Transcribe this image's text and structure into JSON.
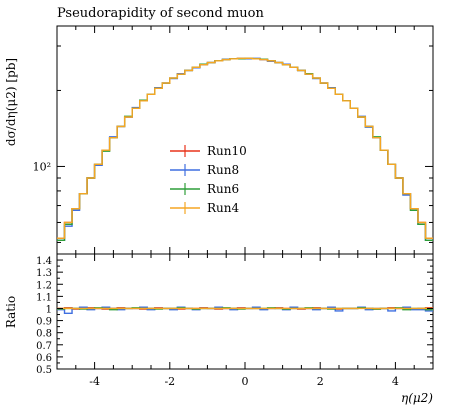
{
  "chart_data": {
    "type": "line",
    "title": "Pseudorapidity of second muon",
    "xlabel": "η(μ2)",
    "ylabel": "dσ/dη(μ2) [pb]",
    "yscale": "log",
    "xlim": [
      -5,
      5
    ],
    "ylim": [
      45,
      360
    ],
    "x_ticks": [
      -4,
      -2,
      0,
      2,
      4
    ],
    "x_tick_labels": [
      "-4",
      "-2",
      "0",
      "2",
      "4"
    ],
    "y_tick_label": "10²",
    "legend_position": "center",
    "bin_edges": [
      -5.0,
      -4.8,
      -4.6,
      -4.4,
      -4.2,
      -4.0,
      -3.8,
      -3.6,
      -3.4,
      -3.2,
      -3.0,
      -2.8,
      -2.6,
      -2.4,
      -2.2,
      -2.0,
      -1.8,
      -1.6,
      -1.4,
      -1.2,
      -1.0,
      -0.8,
      -0.6,
      -0.4,
      -0.2,
      0.0,
      0.2,
      0.4,
      0.6,
      0.8,
      1.0,
      1.2,
      1.4,
      1.6,
      1.8,
      2.0,
      2.2,
      2.4,
      2.6,
      2.8,
      3.0,
      3.2,
      3.4,
      3.6,
      3.8,
      4.0,
      4.2,
      4.4,
      4.6,
      4.8,
      5.0
    ],
    "series": [
      {
        "name": "Run10",
        "color": "#e8331a",
        "values": [
          52,
          60,
          68,
          78,
          90,
          102,
          116,
          130,
          144,
          157,
          170,
          182,
          193,
          204,
          214,
          224,
          232,
          240,
          247,
          253,
          258,
          262,
          265,
          267,
          268,
          268,
          267,
          265,
          262,
          258,
          253,
          247,
          240,
          232,
          224,
          214,
          204,
          193,
          182,
          170,
          157,
          144,
          130,
          116,
          102,
          90,
          78,
          68,
          60,
          52
        ],
        "ratio": [
          1.0,
          1.005,
          0.995,
          1.0,
          1.005,
          1.0,
          0.995,
          1.0,
          1.005,
          1.0,
          1.0,
          0.995,
          1.0,
          1.005,
          1.0,
          1.0,
          0.995,
          1.0,
          1.0,
          1.005,
          1.0,
          0.995,
          1.0,
          1.0,
          1.005,
          1.0,
          1.0,
          0.995,
          1.0,
          1.005,
          1.0,
          1.0,
          0.995,
          1.0,
          1.005,
          1.0,
          1.0,
          0.995,
          1.0,
          1.0,
          1.005,
          1.0,
          0.995,
          1.0,
          1.005,
          1.0,
          1.0,
          0.995,
          1.0,
          1.005
        ]
      },
      {
        "name": "Run8",
        "color": "#3f6fe0",
        "values": [
          51,
          58,
          67,
          78,
          90,
          101,
          116,
          131,
          144,
          157,
          171,
          182,
          193,
          205,
          214,
          223,
          233,
          240,
          246,
          253,
          258,
          262,
          266,
          267,
          268,
          267,
          268,
          265,
          261,
          258,
          254,
          247,
          240,
          232,
          223,
          214,
          205,
          193,
          182,
          170,
          158,
          143,
          130,
          116,
          102,
          90,
          77,
          68,
          59,
          51
        ],
        "ratio": [
          0.99,
          0.96,
          1.0,
          1.01,
          0.99,
          1.0,
          1.01,
          1.0,
          0.99,
          1.0,
          1.0,
          1.01,
          0.99,
          1.0,
          1.0,
          0.99,
          1.01,
          1.0,
          0.99,
          1.0,
          1.0,
          1.01,
          1.0,
          0.99,
          1.0,
          1.0,
          1.01,
          0.99,
          1.0,
          1.0,
          0.99,
          1.01,
          1.0,
          1.0,
          0.99,
          1.0,
          1.01,
          0.98,
          1.0,
          1.0,
          1.01,
          0.99,
          1.0,
          1.0,
          0.98,
          1.0,
          1.01,
          0.99,
          0.99,
          0.98
        ]
      },
      {
        "name": "Run6",
        "color": "#2e9e3a",
        "values": [
          51,
          59,
          68,
          78,
          90,
          102,
          115,
          130,
          144,
          158,
          170,
          183,
          193,
          204,
          214,
          224,
          232,
          240,
          247,
          254,
          258,
          262,
          265,
          267,
          267,
          268,
          267,
          266,
          262,
          258,
          253,
          247,
          240,
          233,
          224,
          214,
          204,
          193,
          182,
          170,
          157,
          144,
          131,
          116,
          102,
          90,
          78,
          67,
          59,
          51
        ],
        "ratio": [
          0.995,
          1.0,
          1.0,
          0.995,
          1.0,
          1.005,
          1.0,
          0.99,
          1.0,
          1.0,
          1.005,
          1.0,
          1.0,
          0.995,
          1.0,
          1.0,
          1.005,
          1.0,
          0.995,
          1.0,
          1.0,
          1.0,
          1.005,
          1.0,
          0.995,
          1.0,
          1.0,
          1.0,
          1.005,
          1.0,
          0.995,
          1.0,
          1.0,
          1.005,
          1.0,
          1.0,
          0.995,
          1.0,
          1.0,
          1.0,
          1.005,
          1.0,
          0.995,
          1.0,
          1.0,
          1.005,
          0.99,
          1.0,
          1.0,
          0.99
        ]
      },
      {
        "name": "Run4",
        "color": "#f5a623",
        "values": [
          52,
          60,
          68,
          78,
          90,
          102,
          116,
          130,
          144,
          157,
          170,
          182,
          193,
          204,
          214,
          224,
          232,
          240,
          247,
          253,
          258,
          262,
          265,
          267,
          268,
          268,
          267,
          265,
          262,
          258,
          253,
          247,
          240,
          232,
          224,
          214,
          204,
          193,
          182,
          170,
          157,
          144,
          130,
          116,
          102,
          90,
          78,
          68,
          60,
          52
        ],
        "ratio": [
          1.0,
          1.0,
          1.0,
          1.0,
          1.0,
          1.0,
          1.0,
          1.0,
          1.0,
          1.0,
          1.0,
          1.0,
          1.0,
          1.0,
          1.0,
          1.0,
          1.0,
          1.0,
          1.0,
          1.0,
          1.0,
          1.0,
          1.0,
          1.0,
          1.0,
          1.0,
          1.0,
          1.0,
          1.0,
          1.0,
          1.0,
          1.0,
          1.0,
          1.0,
          1.0,
          1.0,
          1.0,
          1.0,
          1.0,
          1.0,
          1.0,
          1.0,
          1.0,
          1.0,
          1.0,
          1.0,
          1.0,
          1.0,
          1.0,
          1.0
        ]
      }
    ],
    "ratio_panel": {
      "ylabel": "Ratio",
      "ylim": [
        0.5,
        1.45
      ],
      "y_ticks": [
        0.5,
        0.6,
        0.7,
        0.8,
        0.9,
        1.0,
        1.1,
        1.2,
        1.3,
        1.4
      ],
      "y_tick_labels": [
        "0.5",
        "0.6",
        "0.7",
        "0.8",
        "0.9",
        "1",
        "1.1",
        "1.2",
        "1.3",
        "1.4"
      ]
    }
  }
}
